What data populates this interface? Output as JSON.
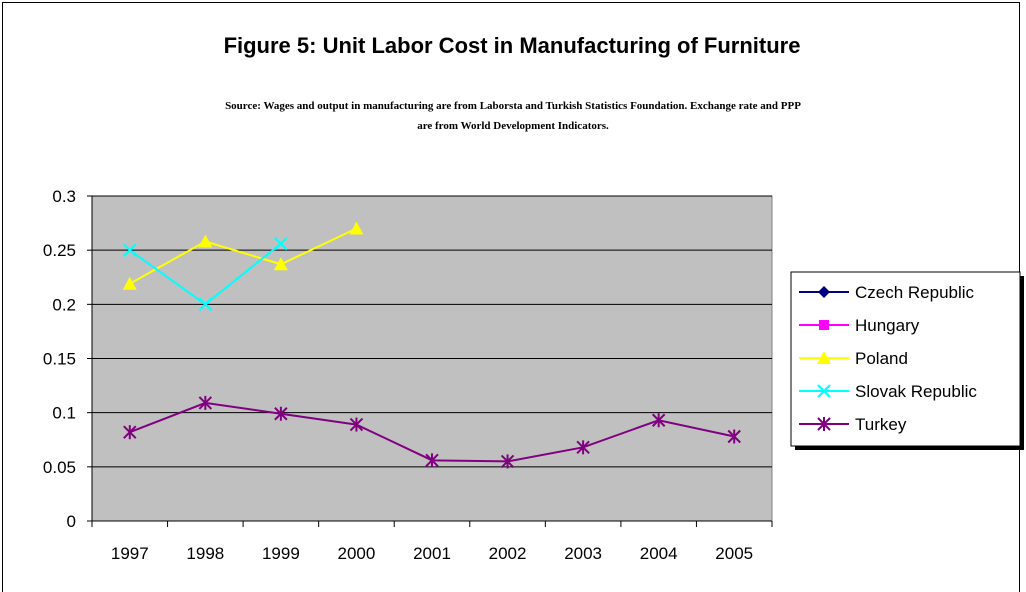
{
  "chart_data": {
    "type": "line",
    "title": "Figure 5: Unit Labor Cost in Manufacturing of Furniture",
    "subtitle": "Source: Wages and output in manufacturing are from Laborsta and Turkish Statistics Foundation. Exchange rate and PPP are from World Development Indicators.",
    "categories": [
      "1997",
      "1998",
      "1999",
      "2000",
      "2001",
      "2002",
      "2003",
      "2004",
      "2005"
    ],
    "ylim": [
      0,
      0.3
    ],
    "yticks": [
      "0",
      "0.05",
      "0.1",
      "0.15",
      "0.2",
      "0.25",
      "0.3"
    ],
    "grid": true,
    "plot_background": "#c0c0c0",
    "legend_position": "right",
    "series": [
      {
        "name": "Czech Republic",
        "color": "#000080",
        "marker": "diamond",
        "values": [
          null,
          null,
          null,
          null,
          null,
          null,
          null,
          null,
          null
        ]
      },
      {
        "name": "Hungary",
        "color": "#ff00ff",
        "marker": "square",
        "values": [
          null,
          null,
          null,
          null,
          null,
          null,
          null,
          null,
          null
        ]
      },
      {
        "name": "Poland",
        "color": "#ffff00",
        "marker": "triangle",
        "values": [
          0.219,
          0.258,
          0.237,
          0.27,
          null,
          null,
          null,
          null,
          null
        ]
      },
      {
        "name": "Slovak Republic",
        "color": "#00ffff",
        "marker": "x",
        "values": [
          0.25,
          0.2,
          0.256,
          null,
          null,
          null,
          null,
          null,
          null
        ]
      },
      {
        "name": "Turkey",
        "color": "#800080",
        "marker": "star",
        "values": [
          0.082,
          0.109,
          0.099,
          0.089,
          0.056,
          0.055,
          0.068,
          0.093,
          0.078
        ]
      }
    ]
  }
}
